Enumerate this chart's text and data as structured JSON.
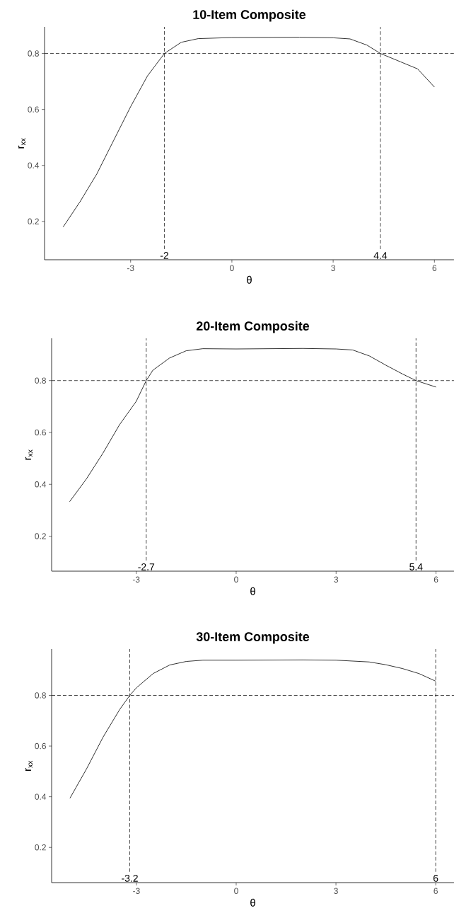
{
  "chart_data": [
    {
      "type": "line",
      "title": "10-Item Composite",
      "xlabel": "θ",
      "ylabel": "r$_{xx}$",
      "x": [
        -5,
        -4.5,
        -4,
        -3.5,
        -3,
        -2.5,
        -2,
        -1.5,
        -1,
        0,
        2,
        3,
        3.5,
        4,
        4.4,
        5,
        5.5,
        6
      ],
      "series": [
        {
          "color": "#1a1a1a",
          "values": [
            0.18,
            0.27,
            0.37,
            0.49,
            0.61,
            0.72,
            0.8,
            0.84,
            0.853,
            0.857,
            0.858,
            0.856,
            0.852,
            0.83,
            0.8,
            0.77,
            0.745,
            0.68
          ]
        }
      ],
      "xlim": [
        -5.55,
        6.58
      ],
      "ylim": [
        0.063,
        0.895
      ],
      "xticks": [
        -3,
        0,
        3,
        6
      ],
      "yticks": [
        0.2,
        0.4,
        0.6,
        0.8
      ],
      "ref_lines": [
        {
          "axis": "y",
          "value": 0.8,
          "line_style": "dashed",
          "color": "#1a1a1a"
        },
        {
          "axis": "x",
          "value": -2,
          "label": "-2",
          "line_style": "dashed",
          "color": "#1a1a1a"
        },
        {
          "axis": "x",
          "value": 4.4,
          "label": "4.4",
          "line_style": "dashed",
          "color": "#1a1a1a"
        }
      ]
    },
    {
      "type": "line",
      "title": "20-Item Composite",
      "xlabel": "θ",
      "ylabel": "r$_{xx}$",
      "x": [
        -5,
        -4.5,
        -4,
        -3.5,
        -3,
        -2.7,
        -2.5,
        -2,
        -1.5,
        -1,
        0,
        2,
        3,
        3.5,
        4,
        4.5,
        5,
        5.4,
        6
      ],
      "series": [
        {
          "color": "#1a1a1a",
          "values": [
            0.333,
            0.42,
            0.52,
            0.63,
            0.72,
            0.8,
            0.84,
            0.887,
            0.915,
            0.923,
            0.922,
            0.924,
            0.922,
            0.918,
            0.895,
            0.859,
            0.825,
            0.8,
            0.775
          ]
        }
      ],
      "xlim": [
        -5.54,
        6.54
      ],
      "ylim": [
        0.065,
        0.963
      ],
      "xticks": [
        -3,
        0,
        3,
        6
      ],
      "yticks": [
        0.2,
        0.4,
        0.6,
        0.8
      ],
      "ref_lines": [
        {
          "axis": "y",
          "value": 0.8,
          "line_style": "dashed",
          "color": "#1a1a1a"
        },
        {
          "axis": "x",
          "value": -2.7,
          "label": "-2.7",
          "line_style": "dashed",
          "color": "#1a1a1a"
        },
        {
          "axis": "x",
          "value": 5.4,
          "label": "5.4",
          "line_style": "dashed",
          "color": "#1a1a1a"
        }
      ]
    },
    {
      "type": "line",
      "title": "30-Item Composite",
      "xlabel": "θ",
      "ylabel": "r$_{xx}$",
      "x": [
        -5,
        -4.5,
        -4,
        -3.5,
        -3.2,
        -3,
        -2.5,
        -2,
        -1.5,
        -1,
        0,
        2,
        3,
        4,
        4.5,
        5,
        5.5,
        6
      ],
      "series": [
        {
          "color": "#1a1a1a",
          "values": [
            0.394,
            0.51,
            0.636,
            0.745,
            0.8,
            0.83,
            0.886,
            0.92,
            0.934,
            0.939,
            0.939,
            0.94,
            0.939,
            0.932,
            0.921,
            0.906,
            0.886,
            0.856
          ]
        }
      ],
      "xlim": [
        -5.55,
        6.55
      ],
      "ylim": [
        0.061,
        0.983
      ],
      "xticks": [
        -3,
        0,
        3,
        6
      ],
      "yticks": [
        0.2,
        0.4,
        0.6,
        0.8
      ],
      "ref_lines": [
        {
          "axis": "y",
          "value": 0.8,
          "line_style": "dashed",
          "color": "#1a1a1a"
        },
        {
          "axis": "x",
          "value": -3.2,
          "label": "-3.2",
          "line_style": "dashed",
          "color": "#1a1a1a"
        },
        {
          "axis": "x",
          "value": 6,
          "label": "6",
          "line_style": "dashed",
          "color": "#1a1a1a"
        }
      ]
    }
  ]
}
